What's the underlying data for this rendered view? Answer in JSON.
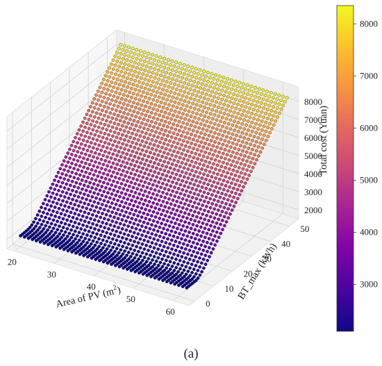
{
  "chart_data": {
    "type": "surface-scatter-3d",
    "title": "",
    "caption": "(a)",
    "xlabel": "Area of PV (m²)",
    "ylabel": "BT_max (kWh)",
    "zlabel": "Total cost (Yuan)",
    "x_ticks": [
      "20",
      "30",
      "40",
      "50",
      "60"
    ],
    "y_ticks": [
      "0",
      "10",
      "20",
      "30",
      "40",
      "50"
    ],
    "z_ticks": [
      "2000",
      "3000",
      "4000",
      "5000",
      "6000",
      "7000",
      "8000"
    ],
    "colorbar_ticks": [
      "3000",
      "4000",
      "5000",
      "6000",
      "7000",
      "8000"
    ],
    "xlim": [
      18,
      64
    ],
    "ylim": [
      -3,
      55
    ],
    "zlim": [
      1500,
      8800
    ],
    "colorbar_range": [
      2100,
      8350
    ],
    "colormap": "plasma",
    "grid": true,
    "x_values_range": [
      20,
      62
    ],
    "y_values_range": [
      0,
      53
    ],
    "z_min": 2100,
    "z_max": 8350,
    "description_of_shape": "Total cost is ~2100 Yuan for BT_max up to about 6 kWh and then rises almost linearly with BT_max to about 8350 Yuan at 53 kWh; it is nearly flat with respect to PV area."
  }
}
